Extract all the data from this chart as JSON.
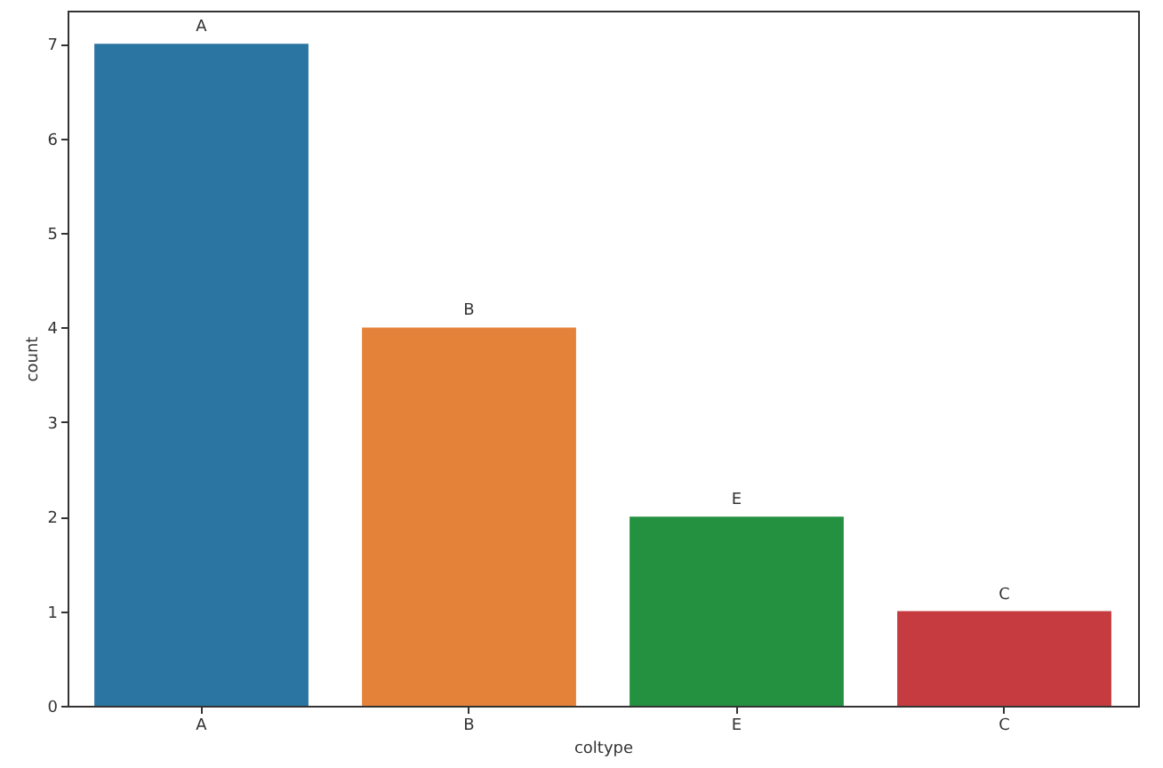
{
  "chart_data": {
    "type": "bar",
    "xlabel": "coltype",
    "ylabel": "count",
    "categories": [
      "A",
      "B",
      "E",
      "C"
    ],
    "values": [
      7,
      4,
      2,
      1
    ],
    "colors": [
      "#2a75a1",
      "#e5823a",
      "#23913f",
      "#c53b40"
    ],
    "value_labels": [
      "A",
      "B",
      "E",
      "C"
    ],
    "ylim": [
      0,
      7.35
    ],
    "yticks": [
      0,
      1,
      2,
      3,
      4,
      5,
      6,
      7
    ],
    "grid": false
  }
}
